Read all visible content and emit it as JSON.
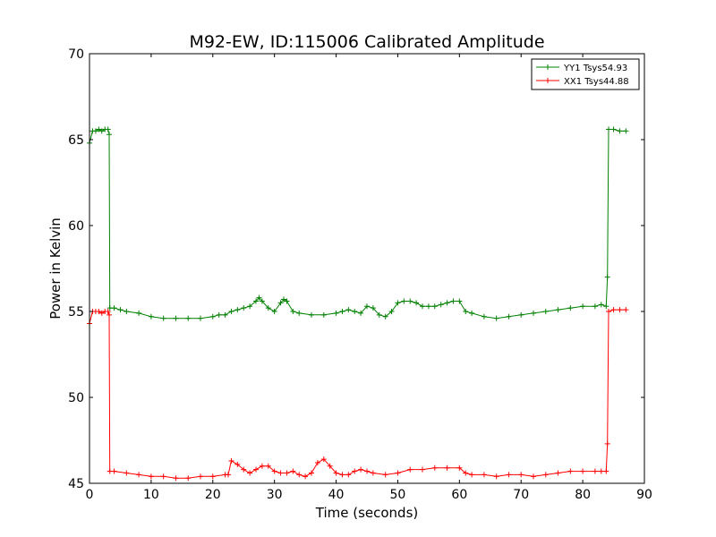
{
  "chart_data": {
    "type": "line",
    "title": "M92-EW, ID:115006 Calibrated Amplitude",
    "xlabel": "Time (seconds)",
    "ylabel": "Power in Kelvin",
    "xlim": [
      0,
      90
    ],
    "ylim": [
      45,
      70
    ],
    "xticks": [
      0,
      10,
      20,
      30,
      40,
      50,
      60,
      70,
      80,
      90
    ],
    "yticks": [
      45,
      50,
      55,
      60,
      65,
      70
    ],
    "grid": false,
    "legend_position": "top-right",
    "marker": "plus",
    "series": [
      {
        "name": "YY1 Tsys54.93",
        "color": "#008000",
        "x": [
          0,
          0.5,
          1,
          1.5,
          2,
          2.5,
          3,
          3.2,
          3.3,
          4,
          5,
          6,
          8,
          10,
          12,
          14,
          16,
          18,
          20,
          21,
          22,
          23,
          24,
          25,
          26,
          27,
          27.5,
          28,
          29,
          30,
          31,
          31.5,
          32,
          33,
          34,
          36,
          38,
          40,
          41,
          42,
          43,
          44,
          45,
          46,
          47,
          48,
          49,
          50,
          51,
          52,
          53,
          54,
          55,
          56,
          57,
          58,
          59,
          60,
          61,
          62,
          64,
          66,
          68,
          70,
          72,
          74,
          76,
          78,
          80,
          82,
          83,
          83.8,
          84,
          84.2,
          85,
          86,
          87
        ],
        "values": [
          64.8,
          65.5,
          65.5,
          65.6,
          65.5,
          65.6,
          65.6,
          65.3,
          55.2,
          55.2,
          55.1,
          55.0,
          54.9,
          54.7,
          54.6,
          54.6,
          54.6,
          54.6,
          54.7,
          54.8,
          54.8,
          55.0,
          55.1,
          55.2,
          55.3,
          55.6,
          55.8,
          55.6,
          55.2,
          55.0,
          55.5,
          55.7,
          55.6,
          55.0,
          54.9,
          54.8,
          54.8,
          54.9,
          55.0,
          55.1,
          55.0,
          54.9,
          55.3,
          55.2,
          54.8,
          54.7,
          55.0,
          55.5,
          55.6,
          55.6,
          55.5,
          55.3,
          55.3,
          55.3,
          55.4,
          55.5,
          55.6,
          55.6,
          55.0,
          54.9,
          54.7,
          54.6,
          54.7,
          54.8,
          54.9,
          55.0,
          55.1,
          55.2,
          55.3,
          55.3,
          55.4,
          55.3,
          57.0,
          65.6,
          65.6,
          65.5,
          65.5
        ]
      },
      {
        "name": "XX1 Tsys44.88",
        "color": "#ff0000",
        "x": [
          0,
          0.5,
          1,
          1.5,
          2,
          2.5,
          3,
          3.2,
          3.3,
          4,
          6,
          8,
          10,
          12,
          14,
          16,
          18,
          20,
          22,
          22.5,
          23,
          24,
          25,
          26,
          27,
          28,
          29,
          30,
          31,
          32,
          33,
          34,
          35,
          36,
          37,
          38,
          39,
          40,
          41,
          42,
          43,
          44,
          45,
          46,
          48,
          50,
          52,
          54,
          56,
          58,
          60,
          61,
          62,
          64,
          66,
          68,
          70,
          72,
          74,
          76,
          78,
          80,
          82,
          83,
          83.8,
          84,
          84.2,
          85,
          86,
          87
        ],
        "values": [
          54.3,
          55.0,
          55.0,
          55.0,
          54.9,
          55.0,
          55.0,
          54.8,
          45.7,
          45.7,
          45.6,
          45.5,
          45.4,
          45.4,
          45.3,
          45.3,
          45.4,
          45.4,
          45.5,
          45.5,
          46.3,
          46.1,
          45.8,
          45.6,
          45.8,
          46.0,
          46.0,
          45.7,
          45.6,
          45.6,
          45.7,
          45.5,
          45.4,
          45.6,
          46.2,
          46.4,
          46.0,
          45.6,
          45.5,
          45.5,
          45.7,
          45.8,
          45.7,
          45.6,
          45.5,
          45.6,
          45.8,
          45.8,
          45.9,
          45.9,
          45.9,
          45.6,
          45.5,
          45.5,
          45.4,
          45.5,
          45.5,
          45.4,
          45.5,
          45.6,
          45.7,
          45.7,
          45.7,
          45.7,
          45.7,
          47.3,
          55.0,
          55.1,
          55.1,
          55.1
        ]
      }
    ]
  }
}
